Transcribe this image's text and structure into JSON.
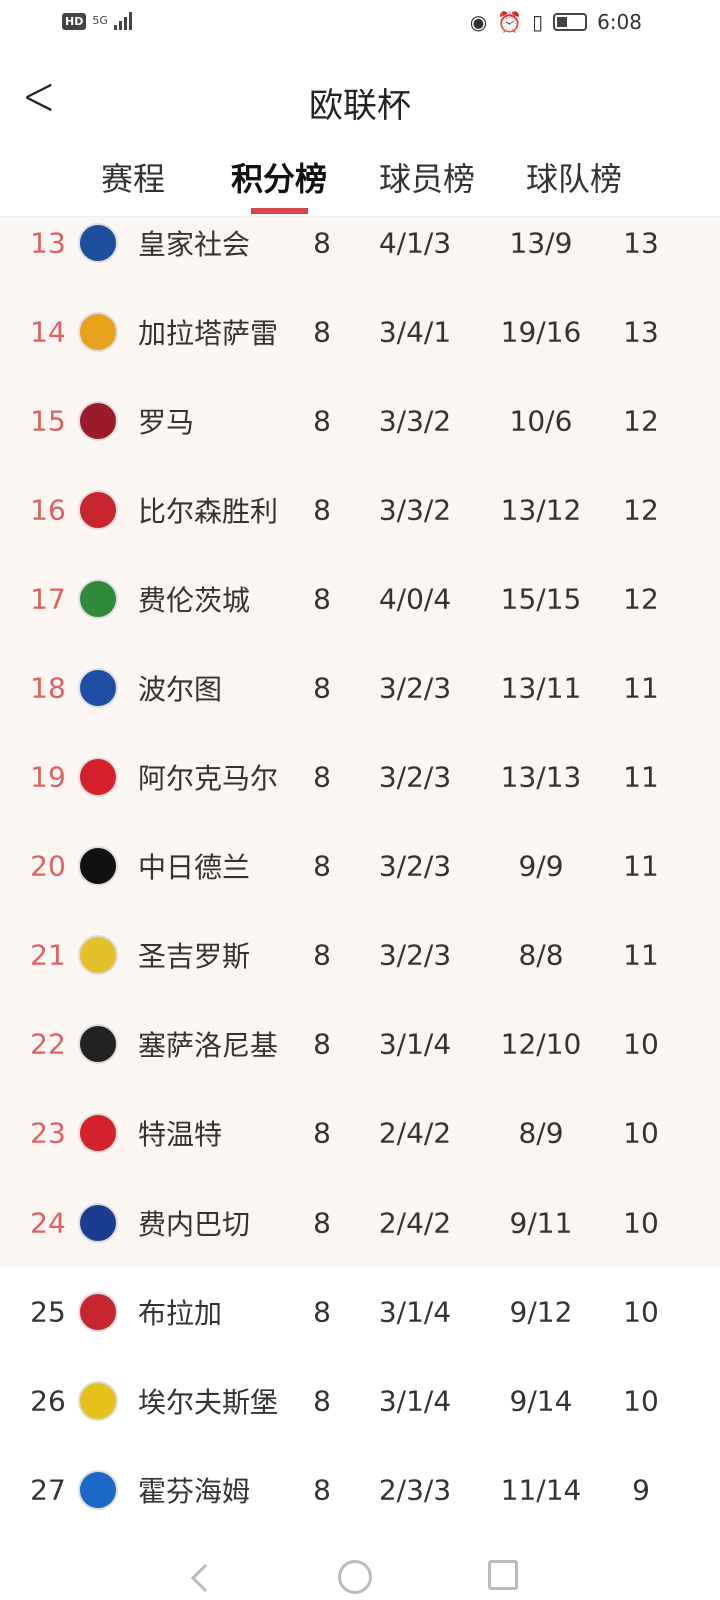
{
  "status_bar": {
    "left_badges": [
      "HD",
      "5G"
    ],
    "time": "6:08",
    "icons": [
      "eye-icon",
      "alarm-icon",
      "vibrate-icon",
      "battery-icon"
    ]
  },
  "header": {
    "title": "欧联杯",
    "back_icon": "chevron-left-icon"
  },
  "tabs": [
    {
      "label": "赛程",
      "active": false
    },
    {
      "label": "积分榜",
      "active": true
    },
    {
      "label": "球员榜",
      "active": false
    },
    {
      "label": "球队榜",
      "active": false
    }
  ],
  "colors": {
    "accent": "#d9434a",
    "highlight_row": "#fcf6f2",
    "highlight_rank": "#e0605f"
  },
  "rows": [
    {
      "rank": "13",
      "team": "皇家社会",
      "played": "8",
      "wdl": "4/1/3",
      "goals": "13/9",
      "points": "13",
      "highlight": true,
      "logo_color": "#1b4f9c"
    },
    {
      "rank": "14",
      "team": "加拉塔萨雷",
      "played": "8",
      "wdl": "3/4/1",
      "goals": "19/16",
      "points": "13",
      "highlight": true,
      "logo_color": "#e8a21c"
    },
    {
      "rank": "15",
      "team": "罗马",
      "played": "8",
      "wdl": "3/3/2",
      "goals": "10/6",
      "points": "12",
      "highlight": true,
      "logo_color": "#9a1b2a"
    },
    {
      "rank": "16",
      "team": "比尔森胜利",
      "played": "8",
      "wdl": "3/3/2",
      "goals": "13/12",
      "points": "12",
      "highlight": true,
      "logo_color": "#c8262e"
    },
    {
      "rank": "17",
      "team": "费伦茨城",
      "played": "8",
      "wdl": "4/0/4",
      "goals": "15/15",
      "points": "12",
      "highlight": true,
      "logo_color": "#2f8a3a"
    },
    {
      "rank": "18",
      "team": "波尔图",
      "played": "8",
      "wdl": "3/2/3",
      "goals": "13/11",
      "points": "11",
      "highlight": true,
      "logo_color": "#1d4ea3"
    },
    {
      "rank": "19",
      "team": "阿尔克马尔",
      "played": "8",
      "wdl": "3/2/3",
      "goals": "13/13",
      "points": "11",
      "highlight": true,
      "logo_color": "#d4212b"
    },
    {
      "rank": "20",
      "team": "中日德兰",
      "played": "8",
      "wdl": "3/2/3",
      "goals": "9/9",
      "points": "11",
      "highlight": true,
      "logo_color": "#111111"
    },
    {
      "rank": "21",
      "team": "圣吉罗斯",
      "played": "8",
      "wdl": "3/2/3",
      "goals": "8/8",
      "points": "11",
      "highlight": true,
      "logo_color": "#e3c12b"
    },
    {
      "rank": "22",
      "team": "塞萨洛尼基",
      "played": "8",
      "wdl": "3/1/4",
      "goals": "12/10",
      "points": "10",
      "highlight": true,
      "logo_color": "#222222"
    },
    {
      "rank": "23",
      "team": "特温特",
      "played": "8",
      "wdl": "2/4/2",
      "goals": "8/9",
      "points": "10",
      "highlight": true,
      "logo_color": "#d4212b"
    },
    {
      "rank": "24",
      "team": "费内巴切",
      "played": "8",
      "wdl": "2/4/2",
      "goals": "9/11",
      "points": "10",
      "highlight": true,
      "logo_color": "#1a3d8f"
    },
    {
      "rank": "25",
      "team": "布拉加",
      "played": "8",
      "wdl": "3/1/4",
      "goals": "9/12",
      "points": "10",
      "highlight": false,
      "logo_color": "#c8262e"
    },
    {
      "rank": "26",
      "team": "埃尔夫斯堡",
      "played": "8",
      "wdl": "3/1/4",
      "goals": "9/14",
      "points": "10",
      "highlight": false,
      "logo_color": "#e6c21c"
    },
    {
      "rank": "27",
      "team": "霍芬海姆",
      "played": "8",
      "wdl": "2/3/3",
      "goals": "11/14",
      "points": "9",
      "highlight": false,
      "logo_color": "#1a68c8"
    }
  ]
}
